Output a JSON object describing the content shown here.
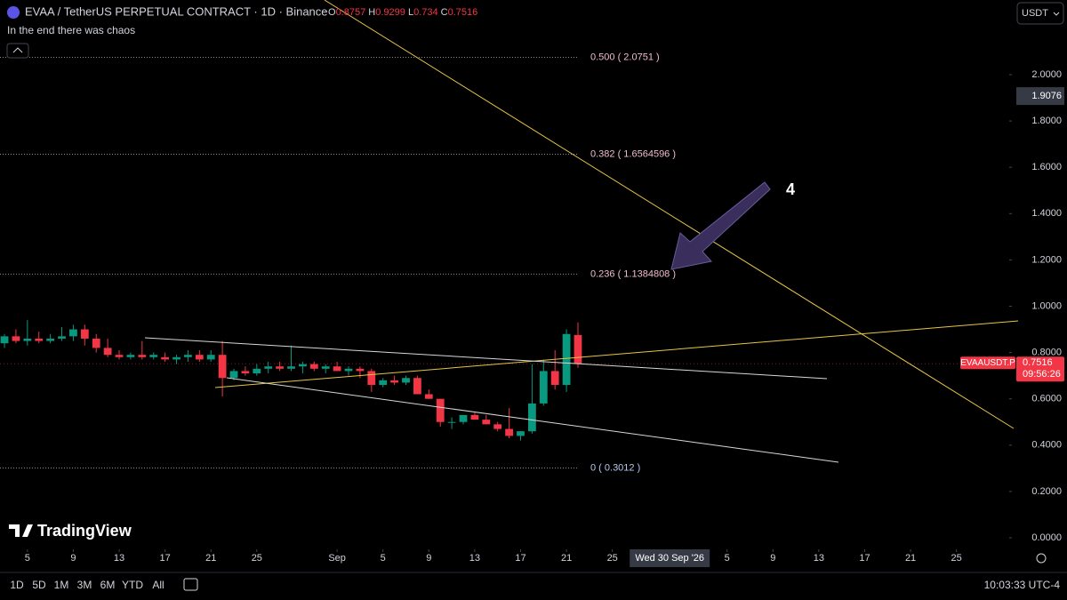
{
  "chart_data": {
    "type": "candlestick",
    "title": "EVAA / TetherUS PERPETUAL CONTRACT · 1D · Binance",
    "subtitle": "In the end there was chaos",
    "legend_fields": [
      "O",
      "H",
      "L",
      "C"
    ],
    "open": [
      0.84,
      0.87,
      0.85,
      0.86,
      0.85,
      0.86,
      0.87,
      0.9,
      0.86,
      0.82,
      0.79,
      0.78,
      0.79,
      0.78,
      0.78,
      0.77,
      0.78,
      0.79,
      0.77,
      0.79,
      0.69,
      0.72,
      0.71,
      0.73,
      0.74,
      0.73,
      0.74,
      0.75,
      0.73,
      0.74,
      0.72,
      0.73,
      0.72,
      0.66,
      0.68,
      0.67,
      0.69,
      0.62,
      0.6,
      0.5,
      0.5,
      0.53,
      0.51,
      0.49,
      0.47,
      0.44,
      0.46,
      0.58,
      0.72,
      0.66,
      0.8757
    ],
    "high": [
      0.88,
      0.9,
      0.94,
      0.89,
      0.88,
      0.91,
      0.92,
      0.92,
      0.88,
      0.86,
      0.81,
      0.8,
      0.85,
      0.8,
      0.8,
      0.79,
      0.81,
      0.81,
      0.81,
      0.85,
      0.73,
      0.74,
      0.75,
      0.76,
      0.76,
      0.83,
      0.76,
      0.76,
      0.75,
      0.76,
      0.74,
      0.74,
      0.73,
      0.69,
      0.7,
      0.7,
      0.7,
      0.64,
      0.6,
      0.52,
      0.53,
      0.54,
      0.53,
      0.5,
      0.56,
      0.46,
      0.75,
      0.77,
      0.81,
      0.9,
      0.9299
    ],
    "low": [
      0.82,
      0.84,
      0.83,
      0.84,
      0.84,
      0.85,
      0.85,
      0.83,
      0.8,
      0.78,
      0.77,
      0.77,
      0.77,
      0.77,
      0.76,
      0.75,
      0.76,
      0.76,
      0.76,
      0.61,
      0.68,
      0.7,
      0.7,
      0.71,
      0.72,
      0.72,
      0.71,
      0.72,
      0.71,
      0.72,
      0.7,
      0.69,
      0.63,
      0.65,
      0.66,
      0.66,
      0.62,
      0.6,
      0.48,
      0.47,
      0.49,
      0.51,
      0.49,
      0.46,
      0.43,
      0.42,
      0.45,
      0.57,
      0.64,
      0.63,
      0.734
    ],
    "close": [
      0.87,
      0.85,
      0.86,
      0.85,
      0.86,
      0.87,
      0.9,
      0.86,
      0.82,
      0.79,
      0.78,
      0.79,
      0.78,
      0.79,
      0.77,
      0.78,
      0.79,
      0.77,
      0.79,
      0.69,
      0.72,
      0.71,
      0.73,
      0.74,
      0.73,
      0.74,
      0.75,
      0.73,
      0.74,
      0.72,
      0.73,
      0.72,
      0.66,
      0.68,
      0.67,
      0.69,
      0.62,
      0.6,
      0.5,
      0.5,
      0.53,
      0.51,
      0.49,
      0.47,
      0.44,
      0.46,
      0.58,
      0.72,
      0.66,
      0.88,
      0.7516
    ],
    "up_color": "#089981",
    "down_color": "#f23645",
    "xlim": [
      -0.39,
      87.6
    ],
    "xticks": [
      {
        "value": 2,
        "label": "5"
      },
      {
        "value": 6,
        "label": "9"
      },
      {
        "value": 10,
        "label": "13"
      },
      {
        "value": 14,
        "label": "17"
      },
      {
        "value": 18,
        "label": "21"
      },
      {
        "value": 22,
        "label": "25"
      },
      {
        "value": 29,
        "label": "Sep"
      },
      {
        "value": 33,
        "label": "5"
      },
      {
        "value": 37,
        "label": "9"
      },
      {
        "value": 41,
        "label": "13"
      },
      {
        "value": 45,
        "label": "17"
      },
      {
        "value": 49,
        "label": "21"
      },
      {
        "value": 53,
        "label": "25"
      },
      {
        "value": 63,
        "label": "5"
      },
      {
        "value": 67,
        "label": "9"
      },
      {
        "value": 71,
        "label": "13"
      },
      {
        "value": 75,
        "label": "17"
      },
      {
        "value": 79,
        "label": "21"
      },
      {
        "value": 83,
        "label": "25"
      }
    ],
    "crosshair_x": {
      "value": 58,
      "label": "Wed 30 Sep '26"
    },
    "crosshair_y": 1.9076,
    "ylim": [
      -0.05,
      2.3225
    ],
    "yticks": [
      {
        "value": 0,
        "label": "0.0000"
      },
      {
        "value": 0.2,
        "label": "0.2000"
      },
      {
        "value": 0.4,
        "label": "0.4000"
      },
      {
        "value": 0.6,
        "label": "0.6000"
      },
      {
        "value": 0.8,
        "label": "0.8000"
      },
      {
        "value": 1,
        "label": "1.0000"
      },
      {
        "value": 1.2,
        "label": "1.2000"
      },
      {
        "value": 1.4,
        "label": "1.4000"
      },
      {
        "value": 1.6,
        "label": "1.6000"
      },
      {
        "value": 1.8,
        "label": "1.8000"
      },
      {
        "value": 2,
        "label": "2.0000"
      }
    ],
    "fib_levels": [
      {
        "value": 2.0751,
        "label": "0.500 ( 2.0751 )"
      },
      {
        "value": 1.6564596,
        "label": "0.382 ( 1.6564596 )"
      },
      {
        "value": 1.1384808,
        "label": "0.236 ( 1.1384808 )"
      },
      {
        "value": 0.3012,
        "label": "0 ( 0.3012 )"
      }
    ],
    "symbol": "EVAAUSDT.P",
    "countdown": "09:56:26",
    "annotation": "4",
    "currency": "USDT",
    "logo": "TradingView",
    "timeframes": [
      "1D",
      "5D",
      "1M",
      "3M",
      "6M",
      "YTD",
      "All"
    ],
    "clock": "10:03:33 UTC-4"
  }
}
